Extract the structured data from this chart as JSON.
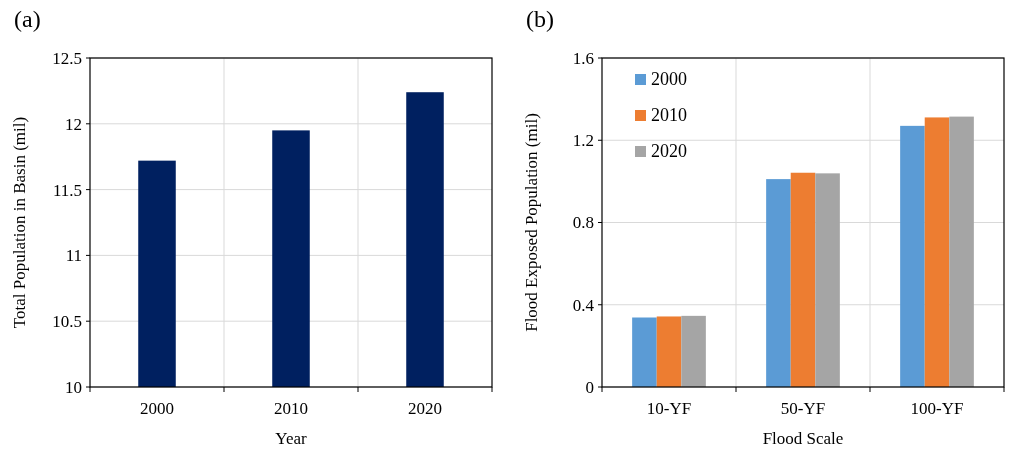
{
  "chart_data": [
    {
      "type": "bar",
      "title": "(a)",
      "xlabel": "Year",
      "ylabel": "Total Population in Basin (mil)",
      "categories": [
        "2000",
        "2010",
        "2020"
      ],
      "series": [
        {
          "color": "#002060",
          "values": [
            11.72,
            11.95,
            12.24
          ]
        }
      ],
      "ylim": [
        10,
        12.5
      ],
      "yticks": [
        {
          "value": 10,
          "label": "10"
        },
        {
          "value": 10.5,
          "label": "10.5"
        },
        {
          "value": 11,
          "label": "11"
        },
        {
          "value": 11.5,
          "label": "11.5"
        },
        {
          "value": 12,
          "label": "12"
        },
        {
          "value": 12.5,
          "label": "12.5"
        }
      ],
      "grid": true,
      "legend": false
    },
    {
      "type": "bar",
      "title": "(b)",
      "xlabel": "Flood Scale",
      "ylabel": "Flood Exposed Population (mil)",
      "categories": [
        "10-YF",
        "50-YF",
        "100-YF"
      ],
      "series": [
        {
          "name": "2000",
          "color": "#5b9bd5",
          "values": [
            0.338,
            1.011,
            1.27
          ]
        },
        {
          "name": "2010",
          "color": "#ed7d31",
          "values": [
            0.343,
            1.042,
            1.311
          ]
        },
        {
          "name": "2020",
          "color": "#a5a5a5",
          "values": [
            0.346,
            1.039,
            1.315
          ]
        }
      ],
      "ylim": [
        0,
        1.6
      ],
      "yticks": [
        {
          "value": 0,
          "label": "0"
        },
        {
          "value": 0.4,
          "label": "0.4"
        },
        {
          "value": 0.8,
          "label": "0.8"
        },
        {
          "value": 1.2,
          "label": "1.2"
        },
        {
          "value": 1.6,
          "label": "1.6"
        }
      ],
      "grid": true,
      "legend": "top left"
    }
  ]
}
